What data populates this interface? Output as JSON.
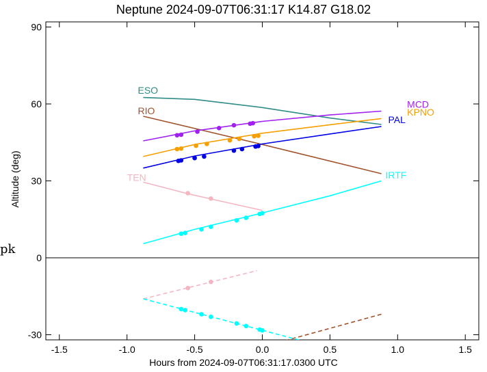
{
  "title": "Neptune 2024-09-07T06:31:17  K14.87  G18.02",
  "stray_text": "pk",
  "chart_data": {
    "type": "line",
    "title": "Neptune 2024-09-07T06:31:17  K14.87  G18.02",
    "xlabel": "Hours from 2024-09-07T06:31:17.0300 UTC",
    "ylabel": "Altitude (deg)",
    "xlim": [
      -1.6,
      1.6
    ],
    "ylim": [
      -32,
      92
    ],
    "xticks": [
      -1.5,
      -1.0,
      -0.5,
      0.0,
      0.5,
      1.0,
      1.5
    ],
    "xtick_labels": [
      "-1.5",
      "-1.0",
      "-0.5",
      "0.0",
      "0.5",
      "1.0",
      "1.5"
    ],
    "yticks": [
      -30,
      0,
      30,
      60,
      90
    ],
    "ytick_labels": [
      "-30",
      "0",
      "30",
      "60",
      "90"
    ],
    "zero_line": true,
    "grid": false,
    "series": [
      {
        "name": "ESO",
        "color": "#2e8b85",
        "label_at": [
          -0.92,
          64
        ],
        "x": [
          -0.88,
          -0.5,
          0.0,
          0.5,
          0.88
        ],
        "y": [
          62.5,
          61.8,
          58.6,
          54.5,
          52.0
        ],
        "markers_x": [],
        "markers_y": []
      },
      {
        "name": "RIO",
        "color": "#a0522d",
        "label_at": [
          -0.92,
          56
        ],
        "x": [
          -0.88,
          0.0,
          0.88
        ],
        "y": [
          55.2,
          44.2,
          32.8
        ],
        "markers_x": [],
        "markers_y": [],
        "dashed_x": [
          0.12,
          0.88
        ],
        "dashed_y": [
          -33.0,
          -22.0
        ]
      },
      {
        "name": "MCD",
        "color": "#a020f0",
        "label_at": [
          1.07,
          58.5
        ],
        "x": [
          -0.88,
          -0.5,
          0.0,
          0.5,
          0.88
        ],
        "y": [
          45.6,
          49.5,
          53.2,
          55.7,
          57.2
        ],
        "markers_x": [
          -0.63,
          -0.6,
          -0.48,
          -0.32,
          -0.21,
          -0.09,
          -0.07
        ],
        "markers_y": [
          47.8,
          48.0,
          49.2,
          50.6,
          51.7,
          52.3,
          52.5
        ]
      },
      {
        "name": "KPNO",
        "color": "#f5a000",
        "label_at": [
          1.07,
          55.5
        ],
        "x": [
          -0.88,
          -0.5,
          0.0,
          0.5,
          0.88
        ],
        "y": [
          39.5,
          44.2,
          48.6,
          51.9,
          54.3
        ],
        "markers_x": [
          -0.63,
          -0.6,
          -0.49,
          -0.41,
          -0.24,
          -0.17,
          -0.06,
          -0.03
        ],
        "markers_y": [
          42.4,
          42.6,
          43.7,
          44.4,
          45.8,
          46.4,
          47.4,
          47.6
        ]
      },
      {
        "name": "PAL",
        "color": "#0000e6",
        "label_at": [
          0.93,
          52.6
        ],
        "x": [
          -0.88,
          -0.5,
          0.0,
          0.5,
          0.88
        ],
        "y": [
          35.0,
          39.7,
          44.4,
          48.3,
          51.2
        ],
        "markers_x": [
          -0.62,
          -0.6,
          -0.5,
          -0.43,
          -0.21,
          -0.15,
          -0.05,
          -0.03
        ],
        "markers_y": [
          37.8,
          38.0,
          38.9,
          39.5,
          41.8,
          42.4,
          43.4,
          43.6
        ]
      },
      {
        "name": "TEN",
        "color": "#f4b6c2",
        "label_at": [
          -1.0,
          30
        ],
        "x": [
          -0.88,
          -0.55,
          -0.3,
          0.0
        ],
        "y": [
          29.5,
          25.0,
          22.0,
          18.5
        ],
        "markers_x": [
          -0.55,
          -0.38
        ],
        "markers_y": [
          25.2,
          23.1
        ],
        "dashed_x": [
          -0.88,
          -0.04
        ],
        "dashed_y": [
          -16.0,
          -5.0
        ],
        "dashed_markers_x": [
          -0.55,
          -0.38
        ],
        "dashed_markers_y": [
          -11.8,
          -9.4
        ]
      },
      {
        "name": "IRTF",
        "color": "#00ffff",
        "label_at": [
          0.91,
          31
        ],
        "x": [
          -0.88,
          -0.5,
          0.0,
          0.5,
          0.88
        ],
        "y": [
          5.5,
          11.1,
          17.5,
          24.2,
          30.0
        ],
        "markers_x": [
          -0.6,
          -0.57,
          -0.45,
          -0.38,
          -0.19,
          -0.12,
          -0.02,
          0.0
        ],
        "markers_y": [
          9.4,
          9.7,
          11.1,
          12.1,
          14.6,
          15.6,
          17.1,
          17.4
        ],
        "dashed_x": [
          -0.88,
          0.34
        ],
        "dashed_y": [
          -16.0,
          -33.0
        ],
        "dashed_markers_x": [
          -0.6,
          -0.57,
          -0.45,
          -0.38,
          -0.19,
          -0.12,
          -0.02,
          0.0
        ],
        "dashed_markers_y": [
          -20.0,
          -20.4,
          -22.0,
          -23.0,
          -25.6,
          -26.6,
          -28.0,
          -28.3
        ]
      }
    ]
  }
}
